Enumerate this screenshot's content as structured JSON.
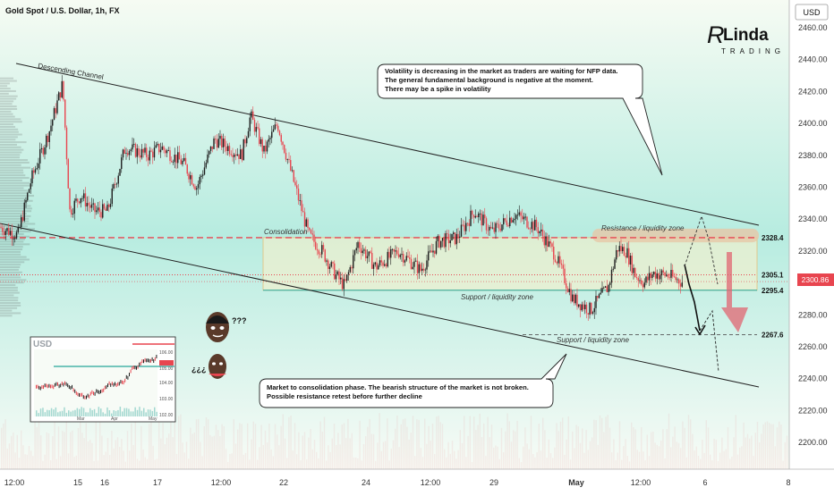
{
  "header": {
    "title": "Gold Spot / U.S. Dollar, 1h, FX"
  },
  "price_axis": {
    "currency": "USD",
    "current_price": "2300.86"
  },
  "branding": {
    "line1": "RLinda",
    "line2": "TRADING"
  },
  "colors": {
    "accent": "#e91e63",
    "background_top": "#f6fbf3",
    "background_mid": "#b7ece0",
    "bull": "#1f1f1f",
    "bear": "#e8454f",
    "resistance": "#e8454f",
    "support": "#26a69a",
    "last_price": "#e8454f"
  },
  "chart_data": {
    "type": "candlestick",
    "symbol": "Gold Spot / U.S. Dollar",
    "timeframe": "1h",
    "ylim": [
      2180,
      2470
    ],
    "y_ticks": [
      "2460.00",
      "2440.00",
      "2420.00",
      "2400.00",
      "2380.00",
      "2360.00",
      "2340.00",
      "2320.00",
      "2300.00",
      "2280.00",
      "2260.00",
      "2240.00",
      "2220.00",
      "2200.00"
    ],
    "x_ticks": [
      "12:00",
      "15",
      "16",
      "17",
      "12:00",
      "22",
      "24",
      "12:00",
      "29",
      "May",
      "12:00",
      "6",
      "8"
    ],
    "close_path": [
      [
        0,
        2335
      ],
      [
        20,
        2330
      ],
      [
        35,
        2365
      ],
      [
        55,
        2395
      ],
      [
        70,
        2425
      ],
      [
        78,
        2345
      ],
      [
        90,
        2355
      ],
      [
        105,
        2345
      ],
      [
        120,
        2345
      ],
      [
        140,
        2385
      ],
      [
        165,
        2380
      ],
      [
        180,
        2385
      ],
      [
        205,
        2375
      ],
      [
        220,
        2360
      ],
      [
        240,
        2390
      ],
      [
        270,
        2380
      ],
      [
        280,
        2405
      ],
      [
        295,
        2382
      ],
      [
        310,
        2400
      ],
      [
        330,
        2360
      ],
      [
        345,
        2330
      ],
      [
        360,
        2320
      ],
      [
        375,
        2305
      ],
      [
        385,
        2298
      ],
      [
        400,
        2325
      ],
      [
        420,
        2310
      ],
      [
        445,
        2320
      ],
      [
        470,
        2308
      ],
      [
        490,
        2326
      ],
      [
        510,
        2328
      ],
      [
        530,
        2345
      ],
      [
        550,
        2332
      ],
      [
        575,
        2343
      ],
      [
        600,
        2335
      ],
      [
        620,
        2318
      ],
      [
        640,
        2290
      ],
      [
        660,
        2283
      ],
      [
        680,
        2298
      ],
      [
        690,
        2322
      ],
      [
        700,
        2320
      ],
      [
        710,
        2305
      ],
      [
        720,
        2300
      ],
      [
        730,
        2306
      ],
      [
        745,
        2305
      ],
      [
        765,
        2300
      ]
    ],
    "levels": {
      "resistance": 2328.4,
      "mid": 2305.1,
      "support": 2295.4,
      "target": 2267.6
    },
    "level_labels": [
      "2328.4",
      "2305.1",
      "2295.4",
      "2267.6"
    ],
    "channel": {
      "label": "Descending Channel"
    }
  },
  "annotations": {
    "consolidation": "Consolidation",
    "resistance_zone": "Resistance / liquidity zone",
    "support_zone_1": "Support / liquidity zone",
    "support_zone_2": "Support / liquidity zone",
    "callout_top": [
      "Volatility is decreasing in the market as traders are waiting for NFP data.",
      "The general fundamental background is negative at the moment.",
      "There may be a spike in volatility"
    ],
    "callout_bottom": [
      "Market to consolidation phase. The bearish structure of the market is not broken.",
      "Possible resistance retest before further decline"
    ],
    "meme_q1": "???",
    "meme_q2": "¿¿¿"
  },
  "inset": {
    "currency": "USD",
    "x_labels": [
      "Mar",
      "Apr",
      "May"
    ],
    "y_labels": [
      "106.00",
      "105.00",
      "104.00",
      "103.00",
      "102.00"
    ]
  }
}
